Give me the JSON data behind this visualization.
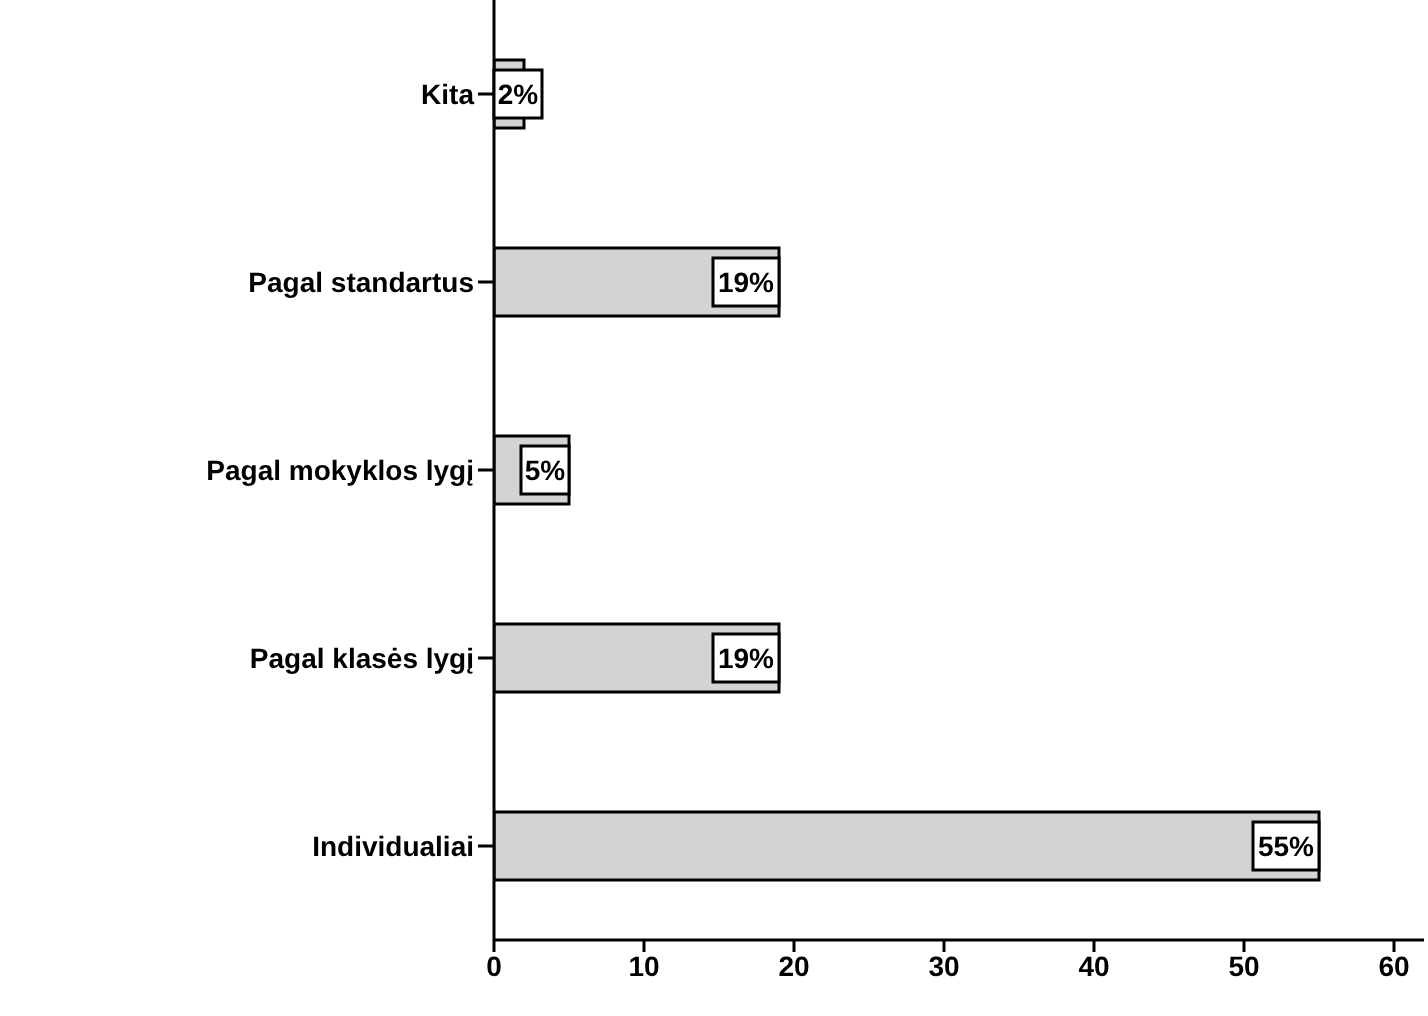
{
  "chart_data": {
    "type": "bar",
    "orientation": "horizontal",
    "categories": [
      "Kita",
      "Pagal standartus",
      "Pagal mokyklos lygį",
      "Pagal klasės lygį",
      "Individualiai"
    ],
    "values": [
      2,
      19,
      5,
      19,
      55
    ],
    "value_labels": [
      "2%",
      "19%",
      "5%",
      "19%",
      "55%"
    ],
    "color": "#d3d3d3",
    "xlim": [
      0,
      62
    ],
    "xticks": [
      0,
      10,
      20,
      30,
      40,
      50,
      60
    ],
    "grid": false,
    "legend": false
  }
}
